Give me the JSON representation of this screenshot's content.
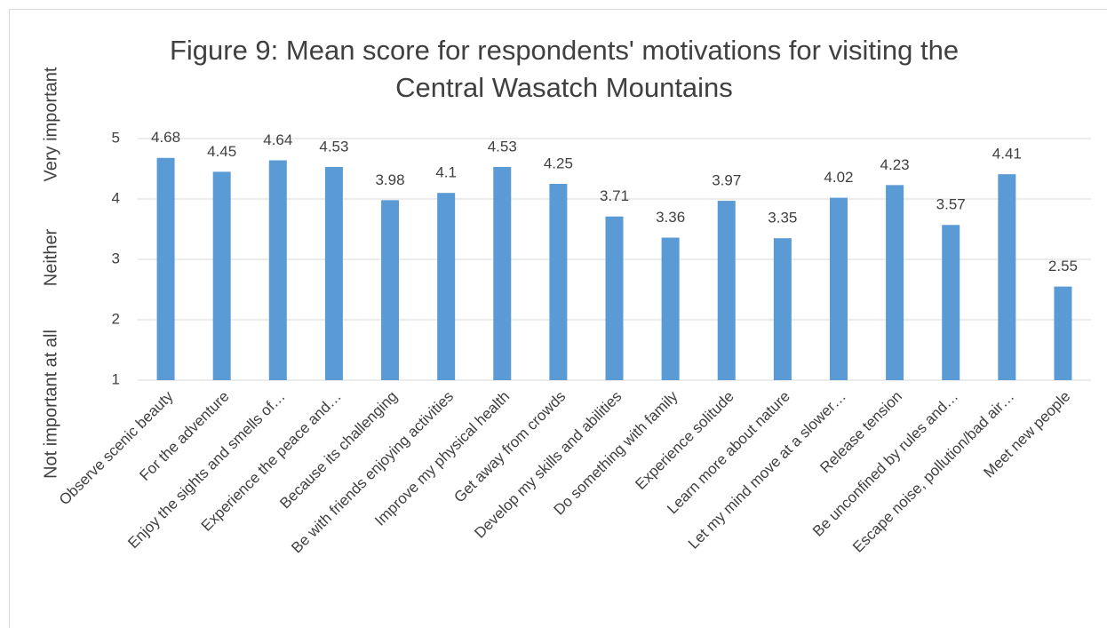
{
  "chart_data": {
    "type": "bar",
    "title": "Figure 9: Mean score for respondents' motivations for visiting the Central Wasatch Mountains",
    "y_labels": [
      "Not important at all",
      "Neither",
      "Very important"
    ],
    "categories": [
      "Observe scenic beauty",
      "For the adventure",
      "Enjoy the sights and smells of…",
      "Experience the peace and…",
      "Because its challenging",
      "Be with friends enjoying activities",
      "Improve my physical health",
      "Get away from crowds",
      "Develop my skills and abilities",
      "Do something with family",
      "Experience solitude",
      "Learn more about nature",
      "Let my mind move at a slower…",
      "Release tension",
      "Be unconfined by rules and…",
      "Escape noise, pollution/bad air…",
      "Meet new people"
    ],
    "values": [
      4.68,
      4.45,
      4.64,
      4.53,
      3.98,
      4.1,
      4.53,
      4.25,
      3.71,
      3.36,
      3.97,
      3.35,
      4.02,
      4.23,
      3.57,
      4.41,
      2.55
    ],
    "color": "#5b9bd5",
    "ylim": [
      1,
      5
    ],
    "yticks": [
      1,
      2,
      3,
      4,
      5
    ],
    "grid": true
  }
}
